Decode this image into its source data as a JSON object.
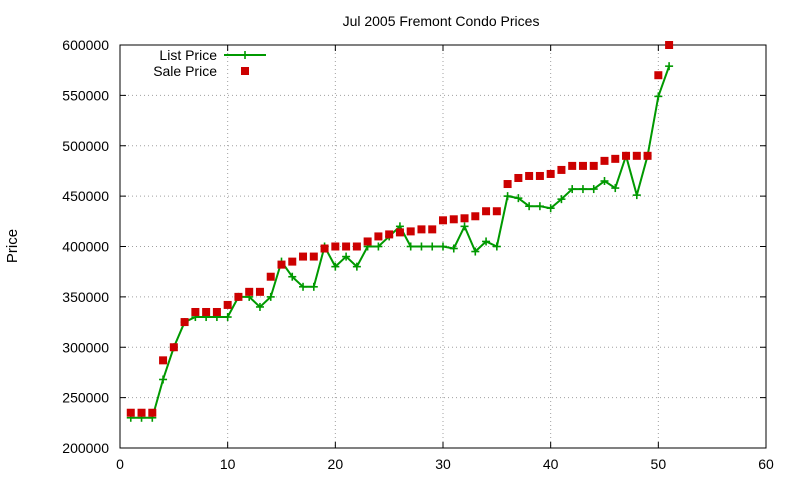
{
  "chart_data": {
    "type": "line",
    "title": "Jul 2005 Fremont Condo Prices",
    "xlabel": "",
    "ylabel": "Price",
    "xlim": [
      0,
      60
    ],
    "ylim": [
      200000,
      600000
    ],
    "xticks": [
      0,
      10,
      20,
      30,
      40,
      50,
      60
    ],
    "yticks": [
      200000,
      250000,
      300000,
      350000,
      400000,
      450000,
      500000,
      550000,
      600000
    ],
    "grid": true,
    "legend_position": "top-left",
    "series": [
      {
        "name": "List Price",
        "style": "line-plus",
        "color": "#009900",
        "x": [
          1,
          2,
          3,
          4,
          5,
          6,
          7,
          8,
          9,
          10,
          11,
          12,
          13,
          14,
          15,
          16,
          17,
          18,
          19,
          20,
          21,
          22,
          23,
          24,
          25,
          26,
          27,
          28,
          29,
          30,
          31,
          32,
          33,
          34,
          35,
          36,
          37,
          38,
          39,
          40,
          41,
          42,
          43,
          44,
          45,
          46,
          47,
          48,
          49,
          50,
          51
        ],
        "y": [
          230000,
          230000,
          230000,
          268000,
          300000,
          325000,
          330000,
          330000,
          330000,
          330000,
          350000,
          350000,
          340000,
          350000,
          385000,
          370000,
          360000,
          360000,
          400000,
          380000,
          390000,
          380000,
          400000,
          400000,
          410000,
          420000,
          400000,
          400000,
          400000,
          400000,
          398000,
          420000,
          395000,
          405000,
          400000,
          450000,
          448000,
          440000,
          440000,
          438000,
          447000,
          457000,
          457000,
          457000,
          465000,
          458000,
          490000,
          451000,
          490000,
          549000,
          579000
        ]
      },
      {
        "name": "Sale Price",
        "style": "square-points",
        "color": "#cc0000",
        "x": [
          1,
          2,
          3,
          4,
          5,
          6,
          7,
          8,
          9,
          10,
          11,
          12,
          13,
          14,
          15,
          16,
          17,
          18,
          19,
          20,
          21,
          22,
          23,
          24,
          25,
          26,
          27,
          28,
          29,
          30,
          31,
          32,
          33,
          34,
          35,
          36,
          37,
          38,
          39,
          40,
          41,
          42,
          43,
          44,
          45,
          46,
          47,
          48,
          49,
          50,
          51
        ],
        "y": [
          235000,
          235000,
          235000,
          287000,
          300000,
          325000,
          335000,
          335000,
          335000,
          342000,
          350000,
          355000,
          355000,
          370000,
          382000,
          385000,
          390000,
          390000,
          398000,
          400000,
          400000,
          400000,
          405000,
          410000,
          412000,
          414000,
          415000,
          417000,
          417000,
          426000,
          427000,
          428000,
          430000,
          435000,
          435000,
          462000,
          468000,
          470000,
          470000,
          472000,
          476000,
          480000,
          480000,
          480000,
          485000,
          487000,
          490000,
          490000,
          490000,
          570000,
          600000
        ]
      }
    ]
  }
}
